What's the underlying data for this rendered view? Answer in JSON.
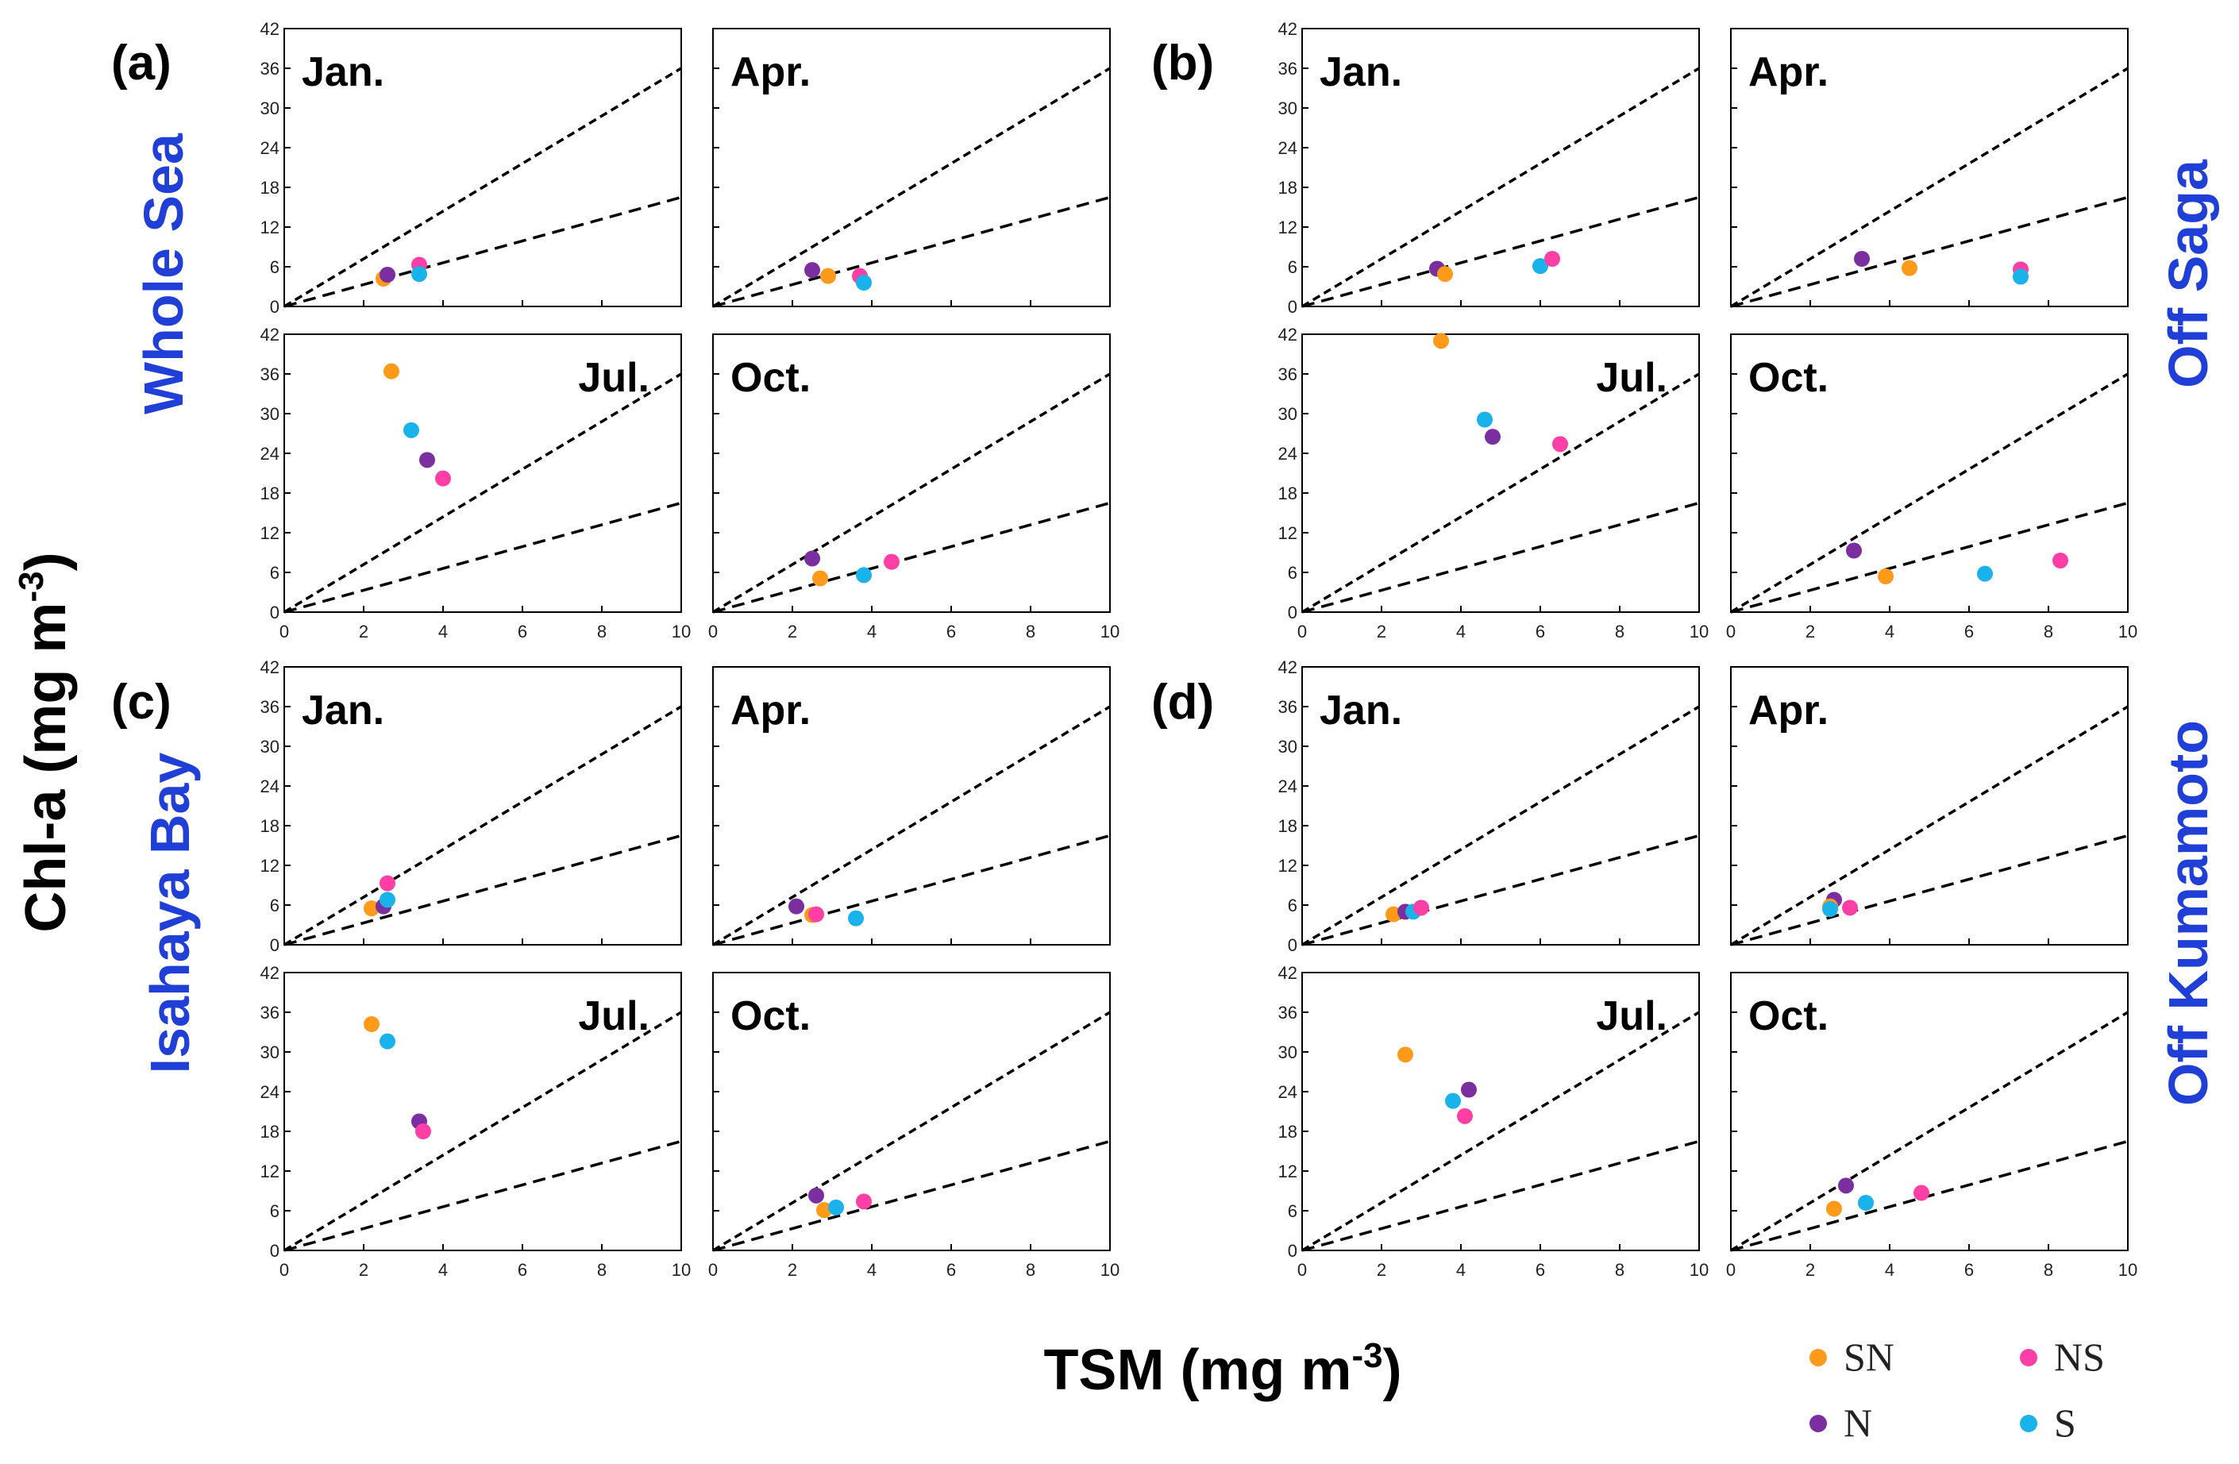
{
  "figure": {
    "ylabel": "Chl-a (mg m",
    "ylabel_sup": "-3",
    "ylabel_end": ")",
    "xlabel": "TSM (mg m",
    "xlabel_sup": "-3",
    "xlabel_end": ")"
  },
  "colors": {
    "SN": "#ff9a1a",
    "NS": "#ff3fa6",
    "N": "#7a2ea0",
    "S": "#1ab2ea",
    "region_label": "#1f3fd6",
    "axis": "#000000"
  },
  "legend": [
    {
      "key": "SN",
      "label": "SN"
    },
    {
      "key": "NS",
      "label": "NS"
    },
    {
      "key": "N",
      "label": "N"
    },
    {
      "key": "S",
      "label": "S"
    }
  ],
  "chart_data": [
    {
      "type": "scatter",
      "panel": "(a)",
      "region": "Whole Sea",
      "xlim": [
        0,
        10
      ],
      "ylim": [
        0,
        42
      ],
      "xticks": [
        0,
        2,
        4,
        6,
        8,
        10
      ],
      "yticks": [
        0,
        6,
        12,
        18,
        24,
        30,
        36,
        42
      ],
      "reference_lines": [
        {
          "slope": 3.6,
          "style": "dashed"
        },
        {
          "slope": 1.65,
          "style": "dashed"
        }
      ],
      "months": [
        {
          "label": "Jan.",
          "points": [
            {
              "series": "SN",
              "x": 2.5,
              "y": 4.2
            },
            {
              "series": "N",
              "x": 2.6,
              "y": 4.8
            },
            {
              "series": "NS",
              "x": 3.4,
              "y": 6.3
            },
            {
              "series": "S",
              "x": 3.4,
              "y": 4.9
            }
          ]
        },
        {
          "label": "Apr.",
          "points": [
            {
              "series": "N",
              "x": 2.5,
              "y": 5.5
            },
            {
              "series": "SN",
              "x": 2.9,
              "y": 4.6
            },
            {
              "series": "NS",
              "x": 3.7,
              "y": 4.6
            },
            {
              "series": "S",
              "x": 3.8,
              "y": 3.6
            }
          ]
        },
        {
          "label": "Jul.",
          "points": [
            {
              "series": "SN",
              "x": 2.7,
              "y": 36.4
            },
            {
              "series": "S",
              "x": 3.2,
              "y": 27.5
            },
            {
              "series": "N",
              "x": 3.6,
              "y": 23.0
            },
            {
              "series": "NS",
              "x": 4.0,
              "y": 20.2
            }
          ]
        },
        {
          "label": "Oct.",
          "points": [
            {
              "series": "N",
              "x": 2.5,
              "y": 8.1
            },
            {
              "series": "SN",
              "x": 2.7,
              "y": 5.1
            },
            {
              "series": "NS",
              "x": 4.5,
              "y": 7.6
            },
            {
              "series": "S",
              "x": 3.8,
              "y": 5.6
            }
          ]
        }
      ]
    },
    {
      "type": "scatter",
      "panel": "(b)",
      "region": "Off Saga",
      "xlim": [
        0,
        10
      ],
      "ylim": [
        0,
        42
      ],
      "xticks": [
        0,
        2,
        4,
        6,
        8,
        10
      ],
      "yticks": [
        0,
        6,
        12,
        18,
        24,
        30,
        36,
        42
      ],
      "reference_lines": [
        {
          "slope": 3.6,
          "style": "dashed"
        },
        {
          "slope": 1.65,
          "style": "dashed"
        }
      ],
      "months": [
        {
          "label": "Jan.",
          "points": [
            {
              "series": "N",
              "x": 3.4,
              "y": 5.7
            },
            {
              "series": "SN",
              "x": 3.6,
              "y": 4.9
            },
            {
              "series": "S",
              "x": 6.0,
              "y": 6.1
            },
            {
              "series": "NS",
              "x": 6.3,
              "y": 7.2
            }
          ]
        },
        {
          "label": "Apr.",
          "points": [
            {
              "series": "N",
              "x": 3.3,
              "y": 7.2
            },
            {
              "series": "SN",
              "x": 4.5,
              "y": 5.8
            },
            {
              "series": "NS",
              "x": 7.3,
              "y": 5.6
            },
            {
              "series": "S",
              "x": 7.3,
              "y": 4.5
            }
          ]
        },
        {
          "label": "Jul.",
          "points": [
            {
              "series": "SN",
              "x": 3.5,
              "y": 41.0
            },
            {
              "series": "S",
              "x": 4.6,
              "y": 29.1
            },
            {
              "series": "N",
              "x": 4.8,
              "y": 26.5
            },
            {
              "series": "NS",
              "x": 6.5,
              "y": 25.4
            }
          ]
        },
        {
          "label": "Oct.",
          "points": [
            {
              "series": "N",
              "x": 3.1,
              "y": 9.3
            },
            {
              "series": "SN",
              "x": 3.9,
              "y": 5.4
            },
            {
              "series": "S",
              "x": 6.4,
              "y": 5.8
            },
            {
              "series": "NS",
              "x": 8.3,
              "y": 7.8
            }
          ]
        }
      ]
    },
    {
      "type": "scatter",
      "panel": "(c)",
      "region": "Isahaya Bay",
      "xlim": [
        0,
        10
      ],
      "ylim": [
        0,
        42
      ],
      "xticks": [
        0,
        2,
        4,
        6,
        8,
        10
      ],
      "yticks": [
        0,
        6,
        12,
        18,
        24,
        30,
        36,
        42
      ],
      "reference_lines": [
        {
          "slope": 3.6,
          "style": "dashed"
        },
        {
          "slope": 1.65,
          "style": "dashed"
        }
      ],
      "months": [
        {
          "label": "Jan.",
          "points": [
            {
              "series": "SN",
              "x": 2.2,
              "y": 5.5
            },
            {
              "series": "N",
              "x": 2.5,
              "y": 5.8
            },
            {
              "series": "NS",
              "x": 2.6,
              "y": 9.3
            },
            {
              "series": "S",
              "x": 2.6,
              "y": 6.8
            }
          ]
        },
        {
          "label": "Apr.",
          "points": [
            {
              "series": "N",
              "x": 2.1,
              "y": 5.8
            },
            {
              "series": "SN",
              "x": 2.5,
              "y": 4.5
            },
            {
              "series": "NS",
              "x": 2.6,
              "y": 4.6
            },
            {
              "series": "S",
              "x": 3.6,
              "y": 4.0
            }
          ]
        },
        {
          "label": "Jul.",
          "points": [
            {
              "series": "SN",
              "x": 2.2,
              "y": 34.2
            },
            {
              "series": "S",
              "x": 2.6,
              "y": 31.6
            },
            {
              "series": "N",
              "x": 3.4,
              "y": 19.5
            },
            {
              "series": "NS",
              "x": 3.5,
              "y": 18.0
            }
          ]
        },
        {
          "label": "Oct.",
          "points": [
            {
              "series": "N",
              "x": 2.6,
              "y": 8.3
            },
            {
              "series": "SN",
              "x": 2.8,
              "y": 6.1
            },
            {
              "series": "S",
              "x": 3.1,
              "y": 6.5
            },
            {
              "series": "NS",
              "x": 3.8,
              "y": 7.4
            }
          ]
        }
      ]
    },
    {
      "type": "scatter",
      "panel": "(d)",
      "region": "Off Kumamoto",
      "xlim": [
        0,
        10
      ],
      "ylim": [
        0,
        42
      ],
      "xticks": [
        0,
        2,
        4,
        6,
        8,
        10
      ],
      "yticks": [
        0,
        6,
        12,
        18,
        24,
        30,
        36,
        42
      ],
      "reference_lines": [
        {
          "slope": 3.6,
          "style": "dashed"
        },
        {
          "slope": 1.65,
          "style": "dashed"
        }
      ],
      "months": [
        {
          "label": "Jan.",
          "points": [
            {
              "series": "SN",
              "x": 2.3,
              "y": 4.6
            },
            {
              "series": "N",
              "x": 2.6,
              "y": 5.0
            },
            {
              "series": "S",
              "x": 2.8,
              "y": 5.0
            },
            {
              "series": "NS",
              "x": 3.0,
              "y": 5.6
            }
          ]
        },
        {
          "label": "Apr.",
          "points": [
            {
              "series": "N",
              "x": 2.6,
              "y": 6.8
            },
            {
              "series": "SN",
              "x": 2.5,
              "y": 5.8
            },
            {
              "series": "S",
              "x": 2.5,
              "y": 5.4
            },
            {
              "series": "NS",
              "x": 3.0,
              "y": 5.6
            }
          ]
        },
        {
          "label": "Jul.",
          "points": [
            {
              "series": "SN",
              "x": 2.6,
              "y": 29.6
            },
            {
              "series": "S",
              "x": 3.8,
              "y": 22.6
            },
            {
              "series": "N",
              "x": 4.2,
              "y": 24.3
            },
            {
              "series": "NS",
              "x": 4.1,
              "y": 20.3
            }
          ]
        },
        {
          "label": "Oct.",
          "points": [
            {
              "series": "SN",
              "x": 2.6,
              "y": 6.3
            },
            {
              "series": "N",
              "x": 2.9,
              "y": 9.8
            },
            {
              "series": "S",
              "x": 3.4,
              "y": 7.2
            },
            {
              "series": "NS",
              "x": 4.8,
              "y": 8.7
            }
          ]
        }
      ]
    }
  ]
}
